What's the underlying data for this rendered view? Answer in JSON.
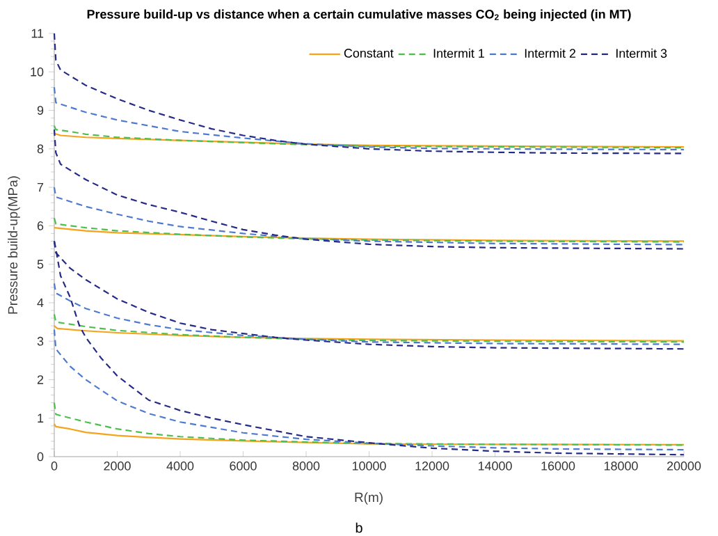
{
  "chart_data": {
    "type": "line",
    "title": "Pressure build-up vs distance when a certain cumulative masses CO$_{2}$ being injected (in MT)",
    "xlabel": "R(m)",
    "ylabel": "Pressure build-up(MPa)",
    "annotations": [
      "b"
    ],
    "xlim": [
      0,
      20000
    ],
    "ylim": [
      0,
      11
    ],
    "xticks": [
      0,
      2000,
      4000,
      6000,
      8000,
      10000,
      12000,
      14000,
      16000,
      18000,
      20000
    ],
    "yticks": [
      0,
      1,
      2,
      3,
      4,
      5,
      6,
      7,
      8,
      9,
      10,
      11
    ],
    "legend": "top right",
    "series": [
      {
        "name": "Constant",
        "color": "#f7a21b",
        "line_style": "solid",
        "x": [
          0,
          200,
          1000,
          2000,
          4000,
          6000,
          8000,
          10000,
          14000,
          20000
        ],
        "values": [
          8.4,
          8.35,
          8.3,
          8.27,
          8.22,
          8.17,
          8.12,
          8.09,
          8.07,
          8.05
        ]
      },
      {
        "name": "Intermit 1",
        "color": "#4cbf4c",
        "line_style": "dashed",
        "x": [
          0,
          50,
          500,
          1000,
          2000,
          4000,
          6000,
          8000,
          10000,
          14000,
          20000
        ],
        "values": [
          8.6,
          8.5,
          8.45,
          8.38,
          8.3,
          8.22,
          8.16,
          8.11,
          8.07,
          8.05,
          8.03
        ]
      },
      {
        "name": "Intermit 2",
        "color": "#4d79d0",
        "line_style": "dashed",
        "x": [
          0,
          50,
          1000,
          2000,
          3000,
          4000,
          6000,
          8000,
          10000,
          12000,
          16000,
          20000
        ],
        "values": [
          9.6,
          9.2,
          8.95,
          8.75,
          8.6,
          8.45,
          8.28,
          8.13,
          8.05,
          8.01,
          7.99,
          7.98
        ]
      },
      {
        "name": "Intermit 3",
        "color": "#252a86",
        "line_style": "dashed",
        "x": [
          0,
          50,
          200,
          1000,
          2000,
          3000,
          4000,
          5000,
          6000,
          7000,
          8000,
          10000,
          12000,
          14000,
          16000,
          20000
        ],
        "values": [
          11,
          10.3,
          10.05,
          9.65,
          9.3,
          9.0,
          8.75,
          8.52,
          8.35,
          8.22,
          8.12,
          8.0,
          7.94,
          7.91,
          7.89,
          7.88
        ]
      },
      {
        "color": "#f7a21b",
        "line_style": "solid",
        "x": [
          0,
          1000,
          2000,
          4000,
          6000,
          8000,
          10000,
          14000,
          20000
        ],
        "values": [
          5.95,
          5.87,
          5.82,
          5.77,
          5.72,
          5.68,
          5.65,
          5.62,
          5.6
        ]
      },
      {
        "color": "#4cbf4c",
        "line_style": "dashed",
        "x": [
          0,
          50,
          1000,
          2000,
          4000,
          6000,
          8000,
          10000,
          14000,
          20000
        ],
        "values": [
          6.2,
          6.05,
          5.95,
          5.87,
          5.78,
          5.71,
          5.66,
          5.63,
          5.6,
          5.58
        ]
      },
      {
        "color": "#4d79d0",
        "line_style": "dashed",
        "x": [
          0,
          50,
          1000,
          2000,
          3000,
          4000,
          6000,
          8000,
          10000,
          14000,
          20000
        ],
        "values": [
          7.0,
          6.75,
          6.5,
          6.3,
          6.12,
          5.98,
          5.8,
          5.66,
          5.6,
          5.54,
          5.51
        ]
      },
      {
        "color": "#252a86",
        "line_style": "dashed",
        "x": [
          0,
          50,
          200,
          1000,
          2000,
          3000,
          4000,
          5000,
          6000,
          7000,
          8000,
          10000,
          12000,
          14000,
          20000
        ],
        "values": [
          8.5,
          7.9,
          7.6,
          7.2,
          6.8,
          6.55,
          6.35,
          6.12,
          5.9,
          5.76,
          5.65,
          5.52,
          5.46,
          5.43,
          5.4
        ]
      },
      {
        "color": "#f7a21b",
        "line_style": "solid",
        "x": [
          0,
          100,
          1000,
          2000,
          4000,
          6000,
          8000,
          10000,
          14000,
          20000
        ],
        "values": [
          3.4,
          3.33,
          3.27,
          3.22,
          3.15,
          3.1,
          3.07,
          3.05,
          3.03,
          3.01
        ]
      },
      {
        "color": "#4cbf4c",
        "line_style": "dashed",
        "x": [
          0,
          50,
          1000,
          2000,
          4000,
          6000,
          8000,
          10000,
          14000,
          20000
        ],
        "values": [
          3.7,
          3.5,
          3.38,
          3.28,
          3.17,
          3.1,
          3.05,
          3.02,
          3.0,
          2.98
        ]
      },
      {
        "color": "#4d79d0",
        "line_style": "dashed",
        "x": [
          0,
          50,
          500,
          1000,
          2000,
          3000,
          4000,
          6000,
          8000,
          10000,
          14000,
          20000
        ],
        "values": [
          4.5,
          4.25,
          4.05,
          3.85,
          3.6,
          3.43,
          3.3,
          3.15,
          3.05,
          2.98,
          2.94,
          2.92
        ]
      },
      {
        "color": "#252a86",
        "line_style": "dashed",
        "x": [
          0,
          50,
          500,
          1000,
          2000,
          3000,
          4000,
          5000,
          6000,
          7000,
          8000,
          10000,
          12000,
          14000,
          20000
        ],
        "values": [
          5.6,
          5.3,
          4.9,
          4.6,
          4.1,
          3.75,
          3.47,
          3.3,
          3.2,
          3.1,
          3.03,
          2.92,
          2.86,
          2.83,
          2.8
        ]
      },
      {
        "color": "#f7a21b",
        "line_style": "solid",
        "x": [
          0,
          50,
          500,
          1000,
          2000,
          3000,
          4000,
          6000,
          8000,
          10000,
          14000,
          20000
        ],
        "values": [
          0.85,
          0.78,
          0.72,
          0.63,
          0.55,
          0.5,
          0.46,
          0.41,
          0.37,
          0.33,
          0.32,
          0.31
        ]
      },
      {
        "color": "#4cbf4c",
        "line_style": "dashed",
        "x": [
          0,
          50,
          1000,
          2000,
          3000,
          4000,
          6000,
          8000,
          10000,
          14000,
          20000
        ],
        "values": [
          1.4,
          1.1,
          0.9,
          0.72,
          0.6,
          0.52,
          0.43,
          0.38,
          0.34,
          0.32,
          0.3
        ]
      },
      {
        "color": "#4d79d0",
        "line_style": "dashed",
        "x": [
          0,
          50,
          500,
          1000,
          2000,
          3000,
          4000,
          6000,
          8000,
          10000,
          12000,
          14000,
          16000,
          20000
        ],
        "values": [
          3.3,
          2.8,
          2.35,
          2.0,
          1.45,
          1.12,
          0.9,
          0.62,
          0.45,
          0.35,
          0.28,
          0.23,
          0.2,
          0.18
        ]
      },
      {
        "color": "#252a86",
        "line_style": "dashed",
        "x": [
          0,
          50,
          200,
          500,
          800,
          1000,
          1500,
          2000,
          3000,
          4000,
          5000,
          6000,
          8000,
          10000,
          12000,
          14000,
          16000,
          20000
        ],
        "values": [
          5.6,
          5.4,
          4.7,
          4.15,
          3.4,
          3.1,
          2.55,
          2.1,
          1.47,
          1.2,
          1.0,
          0.83,
          0.52,
          0.36,
          0.22,
          0.14,
          0.09,
          0.05
        ]
      }
    ]
  }
}
